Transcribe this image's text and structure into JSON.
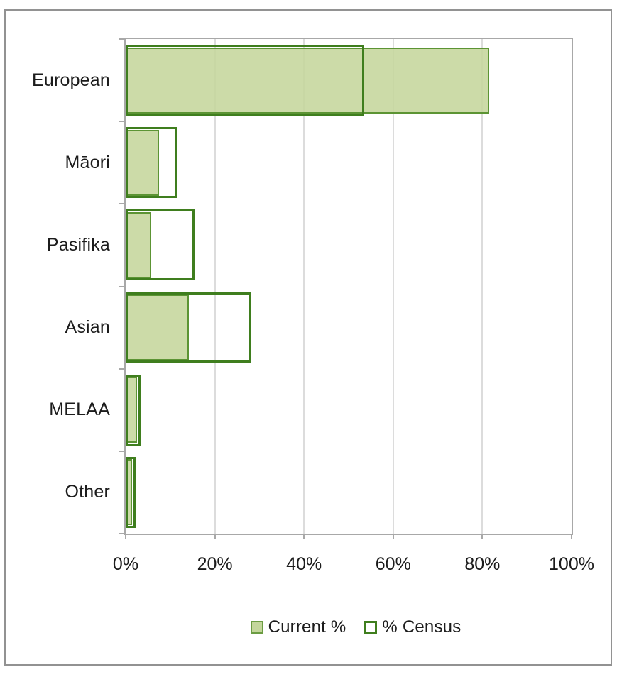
{
  "chart_data": {
    "type": "bar",
    "orientation": "horizontal",
    "title": "",
    "xlabel": "",
    "ylabel": "",
    "categories": [
      "European",
      "Māori",
      "Pasifika",
      "Asian",
      "MELAA",
      "Other"
    ],
    "series": [
      {
        "name": "Current %",
        "style": "filled",
        "values": [
          81.5,
          7.5,
          5.7,
          14.2,
          2.5,
          1.5
        ]
      },
      {
        "name": "% Census",
        "style": "outline",
        "values": [
          53.5,
          11.5,
          15.5,
          28.2,
          3.3,
          2.3
        ]
      }
    ],
    "xlim": [
      0,
      100
    ],
    "x_ticks": [
      {
        "label": "0%",
        "value": 0
      },
      {
        "label": "20%",
        "value": 20
      },
      {
        "label": "40%",
        "value": 40
      },
      {
        "label": "60%",
        "value": 60
      },
      {
        "label": "80%",
        "value": 80
      },
      {
        "label": "100%",
        "value": 100
      }
    ],
    "grid": "vertical",
    "legend_position": "bottom-center"
  },
  "colors": {
    "bar_fill": "#c5d69c",
    "current_border": "#5c9434",
    "census_border": "#3f7e1e",
    "gridline": "#dcdcdc",
    "plot_frame": "#a8a8a8",
    "outer_frame": "#929292",
    "text": "#1c1c1c",
    "background": "#ffffff"
  }
}
